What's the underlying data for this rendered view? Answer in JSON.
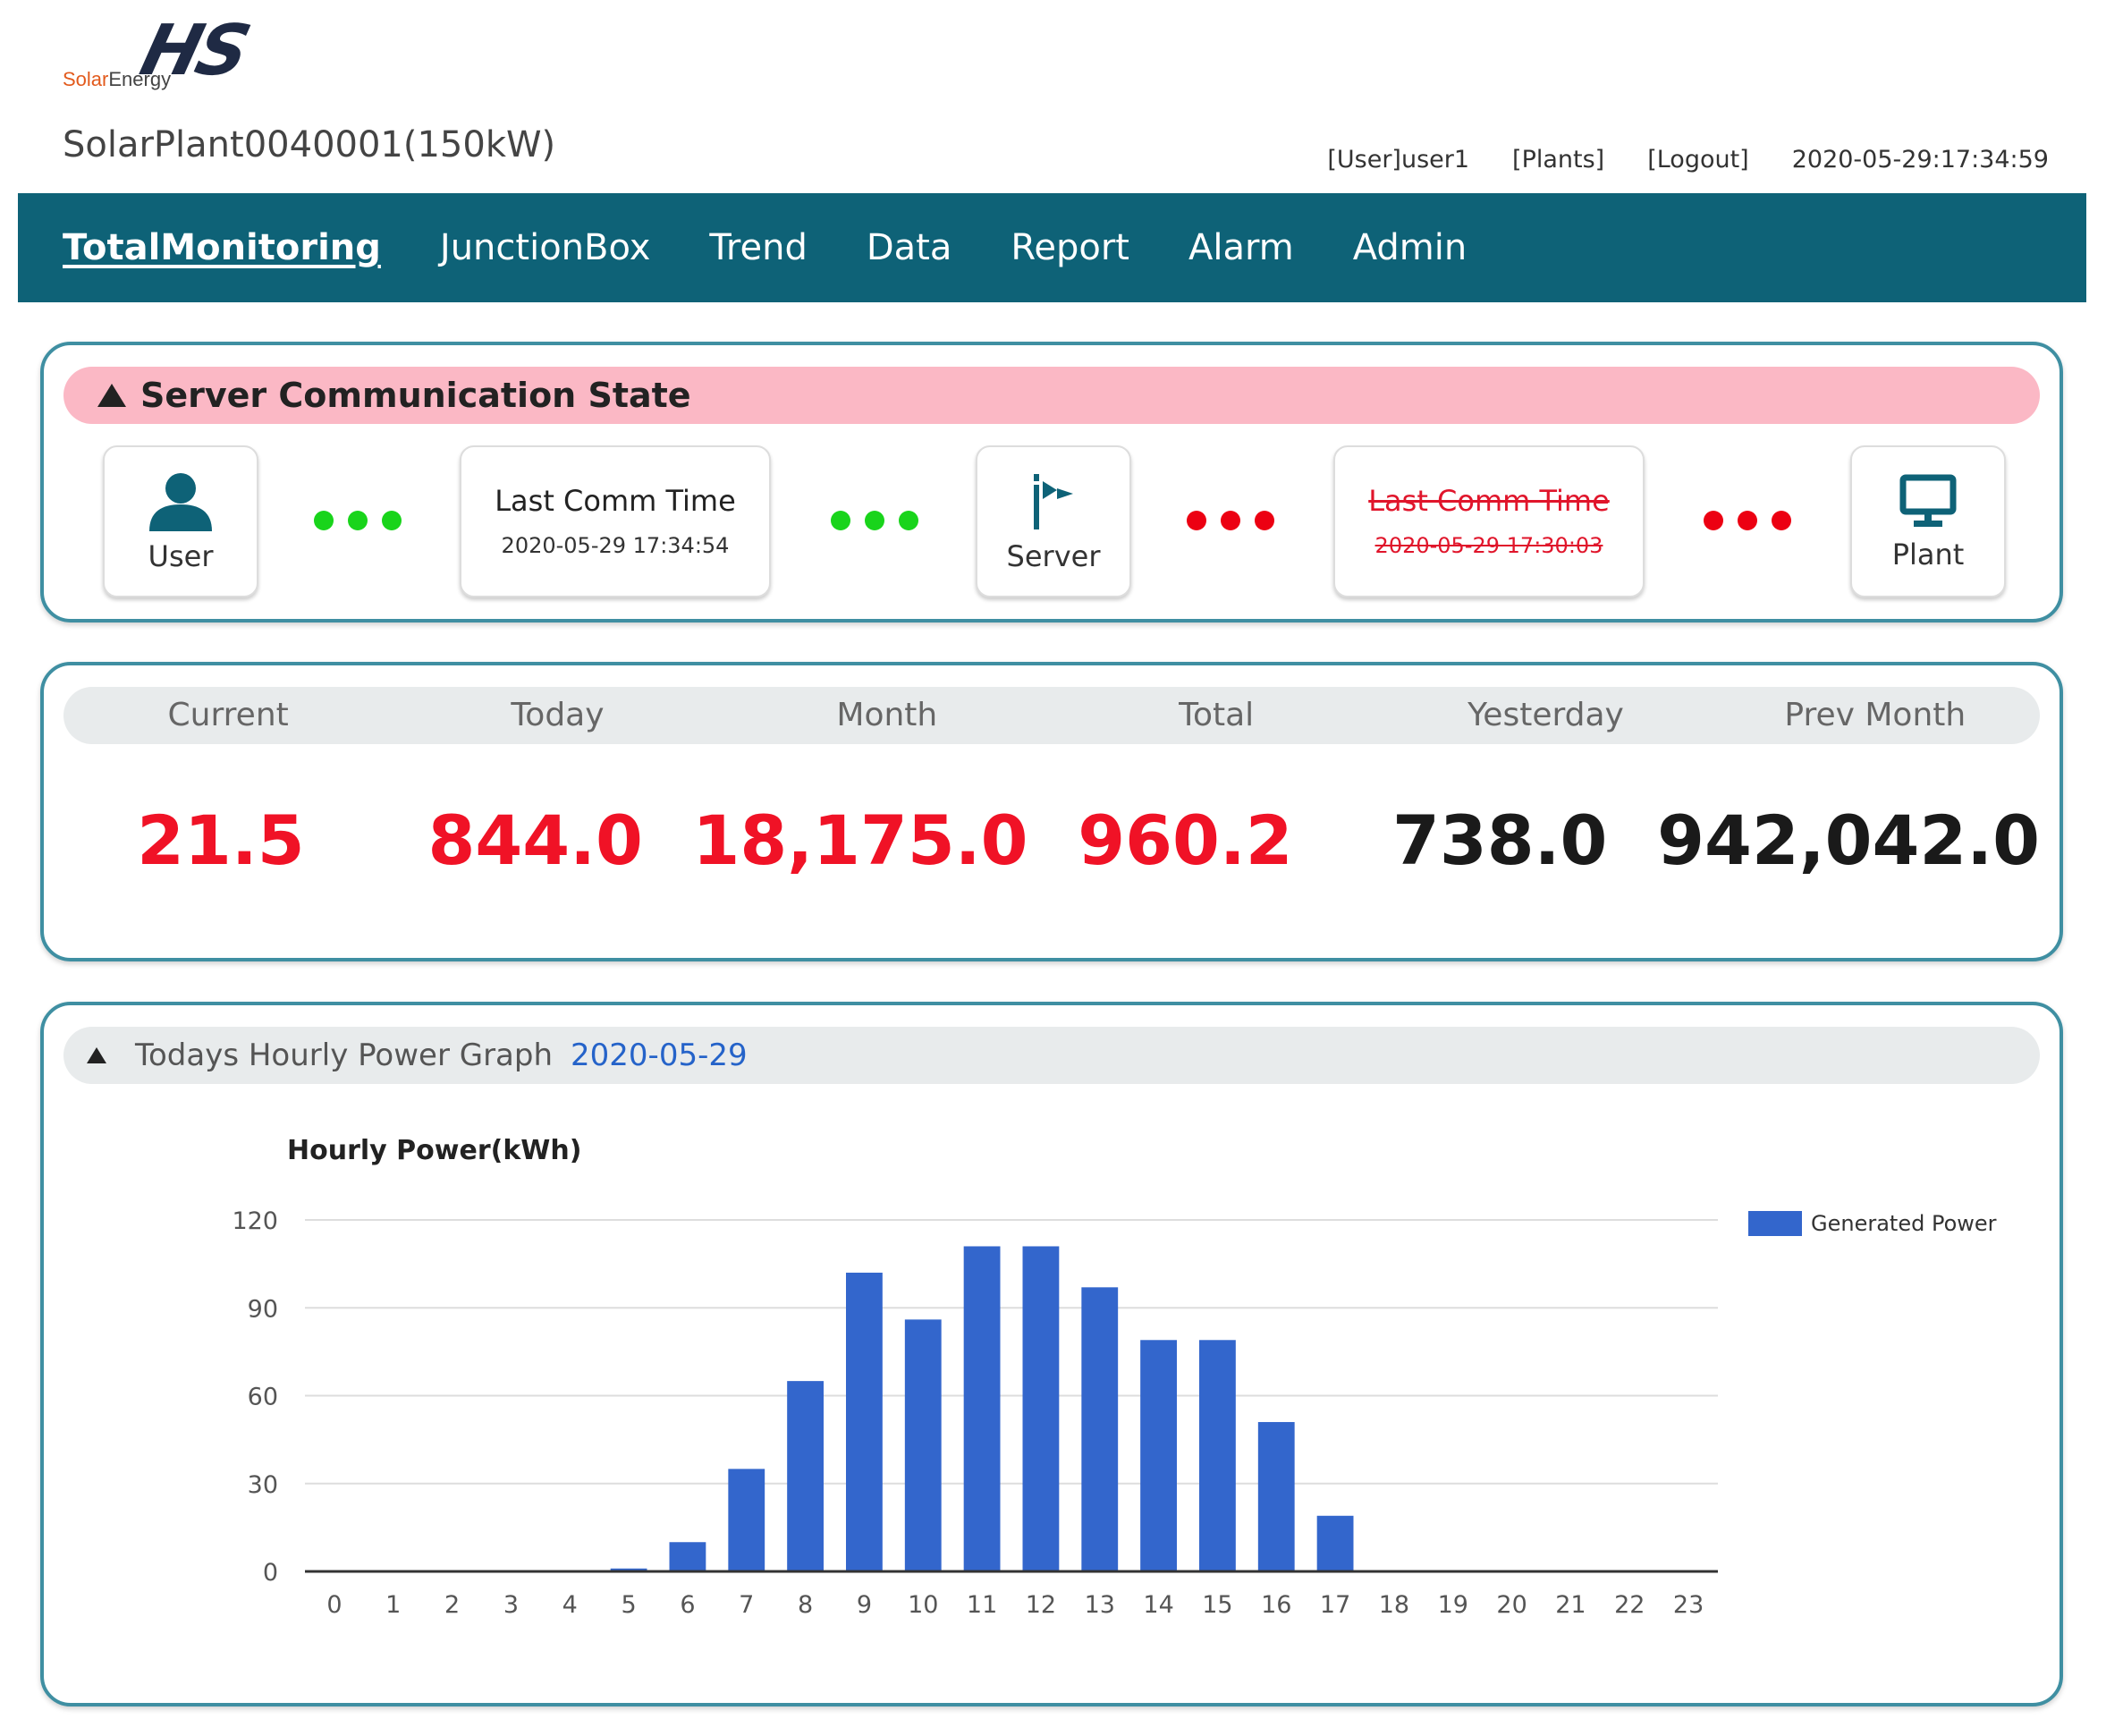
{
  "header": {
    "logo_letters": "HS",
    "logo_text_a": "Solar",
    "logo_text_b": "Energy",
    "plant_name": "SolarPlant0040001(150kW)",
    "user_link": "[User]user1",
    "plants_link": "[Plants]",
    "logout_link": "[Logout]",
    "datetime": "2020-05-29:17:34:59"
  },
  "nav": {
    "items": [
      "TotalMonitoring",
      "JunctionBox",
      "Trend",
      "Data",
      "Report",
      "Alarm",
      "Admin"
    ],
    "active": "TotalMonitoring"
  },
  "comm": {
    "title": "Server Communication State",
    "user_label": "User",
    "server_label": "Server",
    "plant_label": "Plant",
    "last_comm_ok_title": "Last Comm Time",
    "last_comm_ok_time": "2020-05-29 17:34:54",
    "last_comm_bad_title": "Last Comm Time",
    "last_comm_bad_time": "2020-05-29 17:30:03",
    "link_status": [
      "ok",
      "ok",
      "error",
      "error"
    ],
    "colors": {
      "ok": "#19d41b",
      "error": "#ec0012"
    }
  },
  "stats": {
    "labels": [
      "Current",
      "Today",
      "Month",
      "Total",
      "Yesterday",
      "Prev Month"
    ],
    "values": [
      "21.5",
      "844.0",
      "18,175.0",
      "960.2",
      "738.0",
      "942,042.0"
    ],
    "value_colors": [
      "#f01226",
      "#f01226",
      "#f01226",
      "#f01226",
      "#1a1a1a",
      "#1a1a1a"
    ]
  },
  "graph": {
    "title": "Todays Hourly Power Graph",
    "date": "2020-05-29"
  },
  "chart_data": {
    "type": "bar",
    "ylabel": "Hourly Power(kWh)",
    "categories": [
      "0",
      "1",
      "2",
      "3",
      "4",
      "5",
      "6",
      "7",
      "8",
      "9",
      "10",
      "11",
      "12",
      "13",
      "14",
      "15",
      "16",
      "17",
      "18",
      "19",
      "20",
      "21",
      "22",
      "23"
    ],
    "series": [
      {
        "name": "Generated Power",
        "values": [
          0,
          0,
          0,
          0,
          0,
          1,
          10,
          35,
          65,
          102,
          86,
          111,
          111,
          97,
          79,
          79,
          51,
          19,
          0,
          0,
          0,
          0,
          0,
          0
        ]
      }
    ],
    "yticks": [
      0,
      30,
      60,
      90,
      120
    ],
    "ylim": [
      0,
      120
    ],
    "grid": true,
    "legend": "right",
    "bar_color": "#3366cc"
  }
}
